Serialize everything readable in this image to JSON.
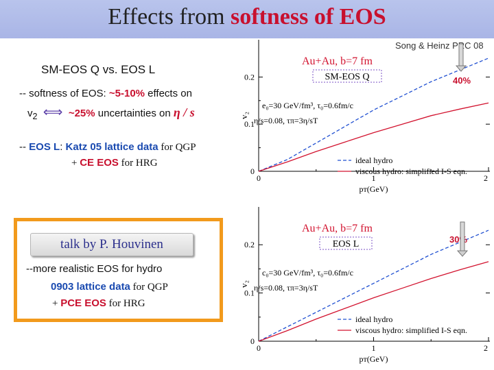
{
  "header": {
    "title_prefix": "Effects from ",
    "title_highlight": "softness of EOS"
  },
  "reference": "Song & Heinz PRC 08",
  "left": {
    "heading": "SM-EOS Q vs. EOS L",
    "softness_prefix": "-- softness of EOS:  ",
    "softness_value": "~5-10%",
    "softness_suffix": " effects on",
    "v2": "v",
    "v2_sub": "2",
    "arrow_glyph": "⟺",
    "uncertainty_value": "~25%",
    "uncertainty_suffix": " uncertainties on ",
    "eta_over_s": "η / s",
    "eosl_prefix": "-- ",
    "eosl_label": "EOS L",
    "eosl_colon": ":  ",
    "katz": "Katz 05",
    "lattice1": " lattice data",
    "for_qgp1": " for QGP",
    "ce_plus": "+ ",
    "ce": "CE EOS",
    "for_hrg1": " for HRG",
    "talk_button": "talk by P. Houvinen",
    "more_realistic": "--more realistic EOS for hydro",
    "lattice0903_num": "0903",
    "lattice0903_text": " lattice data",
    "for_qgp2": " for QGP",
    "pce_plus": "+ ",
    "pce": "PCE EOS",
    "for_hrg2": " for HRG"
  },
  "plots": [
    {
      "system": "Au+Au, b=7 fm",
      "eos_label": "SM-EOS Q",
      "percent": "40%",
      "param_line1": "e₀=30 GeV/fm³,   τ₀=0.6fm/c",
      "param_line2": "η/s=0.08,    τπ=3η/sT",
      "y_label": "v₂",
      "x_label": "pᴛ(GeV)",
      "y_ticks": [
        "0.2",
        "0.1",
        "0"
      ],
      "x_ticks": [
        "0",
        "1",
        "2"
      ],
      "legend": [
        {
          "label": "ideal hydro",
          "style": "dashed",
          "color": "#1f4fd1"
        },
        {
          "label": "viscous hydro: simplified I-S eqn.",
          "style": "solid",
          "color": "#d2122e"
        }
      ],
      "chart_data": {
        "type": "line",
        "xlim": [
          0,
          2
        ],
        "ylim": [
          0,
          0.25
        ],
        "series": [
          {
            "name": "ideal hydro",
            "x": [
              0,
              0.25,
              0.5,
              0.75,
              1.0,
              1.25,
              1.5,
              1.75,
              2.0
            ],
            "y": [
              0,
              0.025,
              0.06,
              0.095,
              0.13,
              0.16,
              0.19,
              0.215,
              0.24
            ]
          },
          {
            "name": "viscous hydro: simplified I-S eqn.",
            "x": [
              0,
              0.25,
              0.5,
              0.75,
              1.0,
              1.25,
              1.5,
              1.75,
              2.0
            ],
            "y": [
              0,
              0.02,
              0.042,
              0.062,
              0.082,
              0.1,
              0.118,
              0.132,
              0.145
            ]
          }
        ]
      }
    },
    {
      "system": "Au+Au, b=7 fm",
      "eos_label": "EOS L",
      "percent": "30%",
      "param_line1": "c₀=30 GeV/fm³,   τ₀=0.6fm/c",
      "param_line2": "η/s=0.08,    τπ=3η/sT",
      "y_label": "v₂",
      "x_label": "pᴛ(GeV)",
      "y_ticks": [
        "0.2",
        "0.1",
        "0"
      ],
      "x_ticks": [
        "0",
        "1",
        "2"
      ],
      "legend": [
        {
          "label": "ideal hydro",
          "style": "dashed",
          "color": "#1f4fd1"
        },
        {
          "label": "viscous hydro: simplified I-S eqn.",
          "style": "solid",
          "color": "#d2122e"
        }
      ],
      "chart_data": {
        "type": "line",
        "xlim": [
          0,
          2
        ],
        "ylim": [
          0,
          0.25
        ],
        "series": [
          {
            "name": "ideal hydro",
            "x": [
              0,
              0.25,
              0.5,
              0.75,
              1.0,
              1.25,
              1.5,
              1.75,
              2.0
            ],
            "y": [
              0,
              0.03,
              0.06,
              0.09,
              0.12,
              0.15,
              0.18,
              0.205,
              0.23
            ]
          },
          {
            "name": "viscous hydro: simplified I-S eqn.",
            "x": [
              0,
              0.25,
              0.5,
              0.75,
              1.0,
              1.25,
              1.5,
              1.75,
              2.0
            ],
            "y": [
              0,
              0.022,
              0.046,
              0.068,
              0.09,
              0.11,
              0.13,
              0.148,
              0.165
            ]
          }
        ]
      }
    }
  ]
}
